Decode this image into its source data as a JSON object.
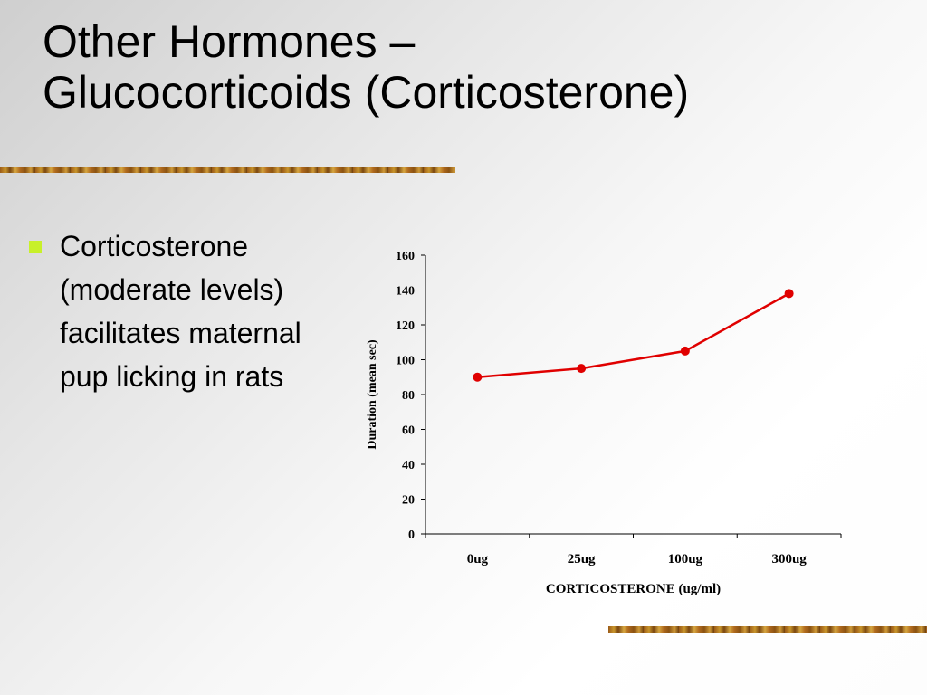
{
  "slide": {
    "title_lines": [
      "Other Hormones –",
      "Glucocorticoids (Corticosterone)"
    ],
    "bullet": "Corticosterone (moderate levels) facilitates maternal pup licking in rats",
    "bullet_color": "#c8f02a"
  },
  "chart_data": {
    "type": "line",
    "categories": [
      "0ug",
      "25ug",
      "100ug",
      "300ug"
    ],
    "values": [
      90,
      95,
      105,
      138
    ],
    "xlabel": "CORTICOSTERONE (ug/ml)",
    "ylabel": "Duration (mean sec)",
    "ylim": [
      0,
      160
    ],
    "yticks": [
      0,
      20,
      40,
      60,
      80,
      100,
      120,
      140,
      160
    ],
    "grid": false,
    "legend": "none",
    "series_color": "#e00000"
  }
}
